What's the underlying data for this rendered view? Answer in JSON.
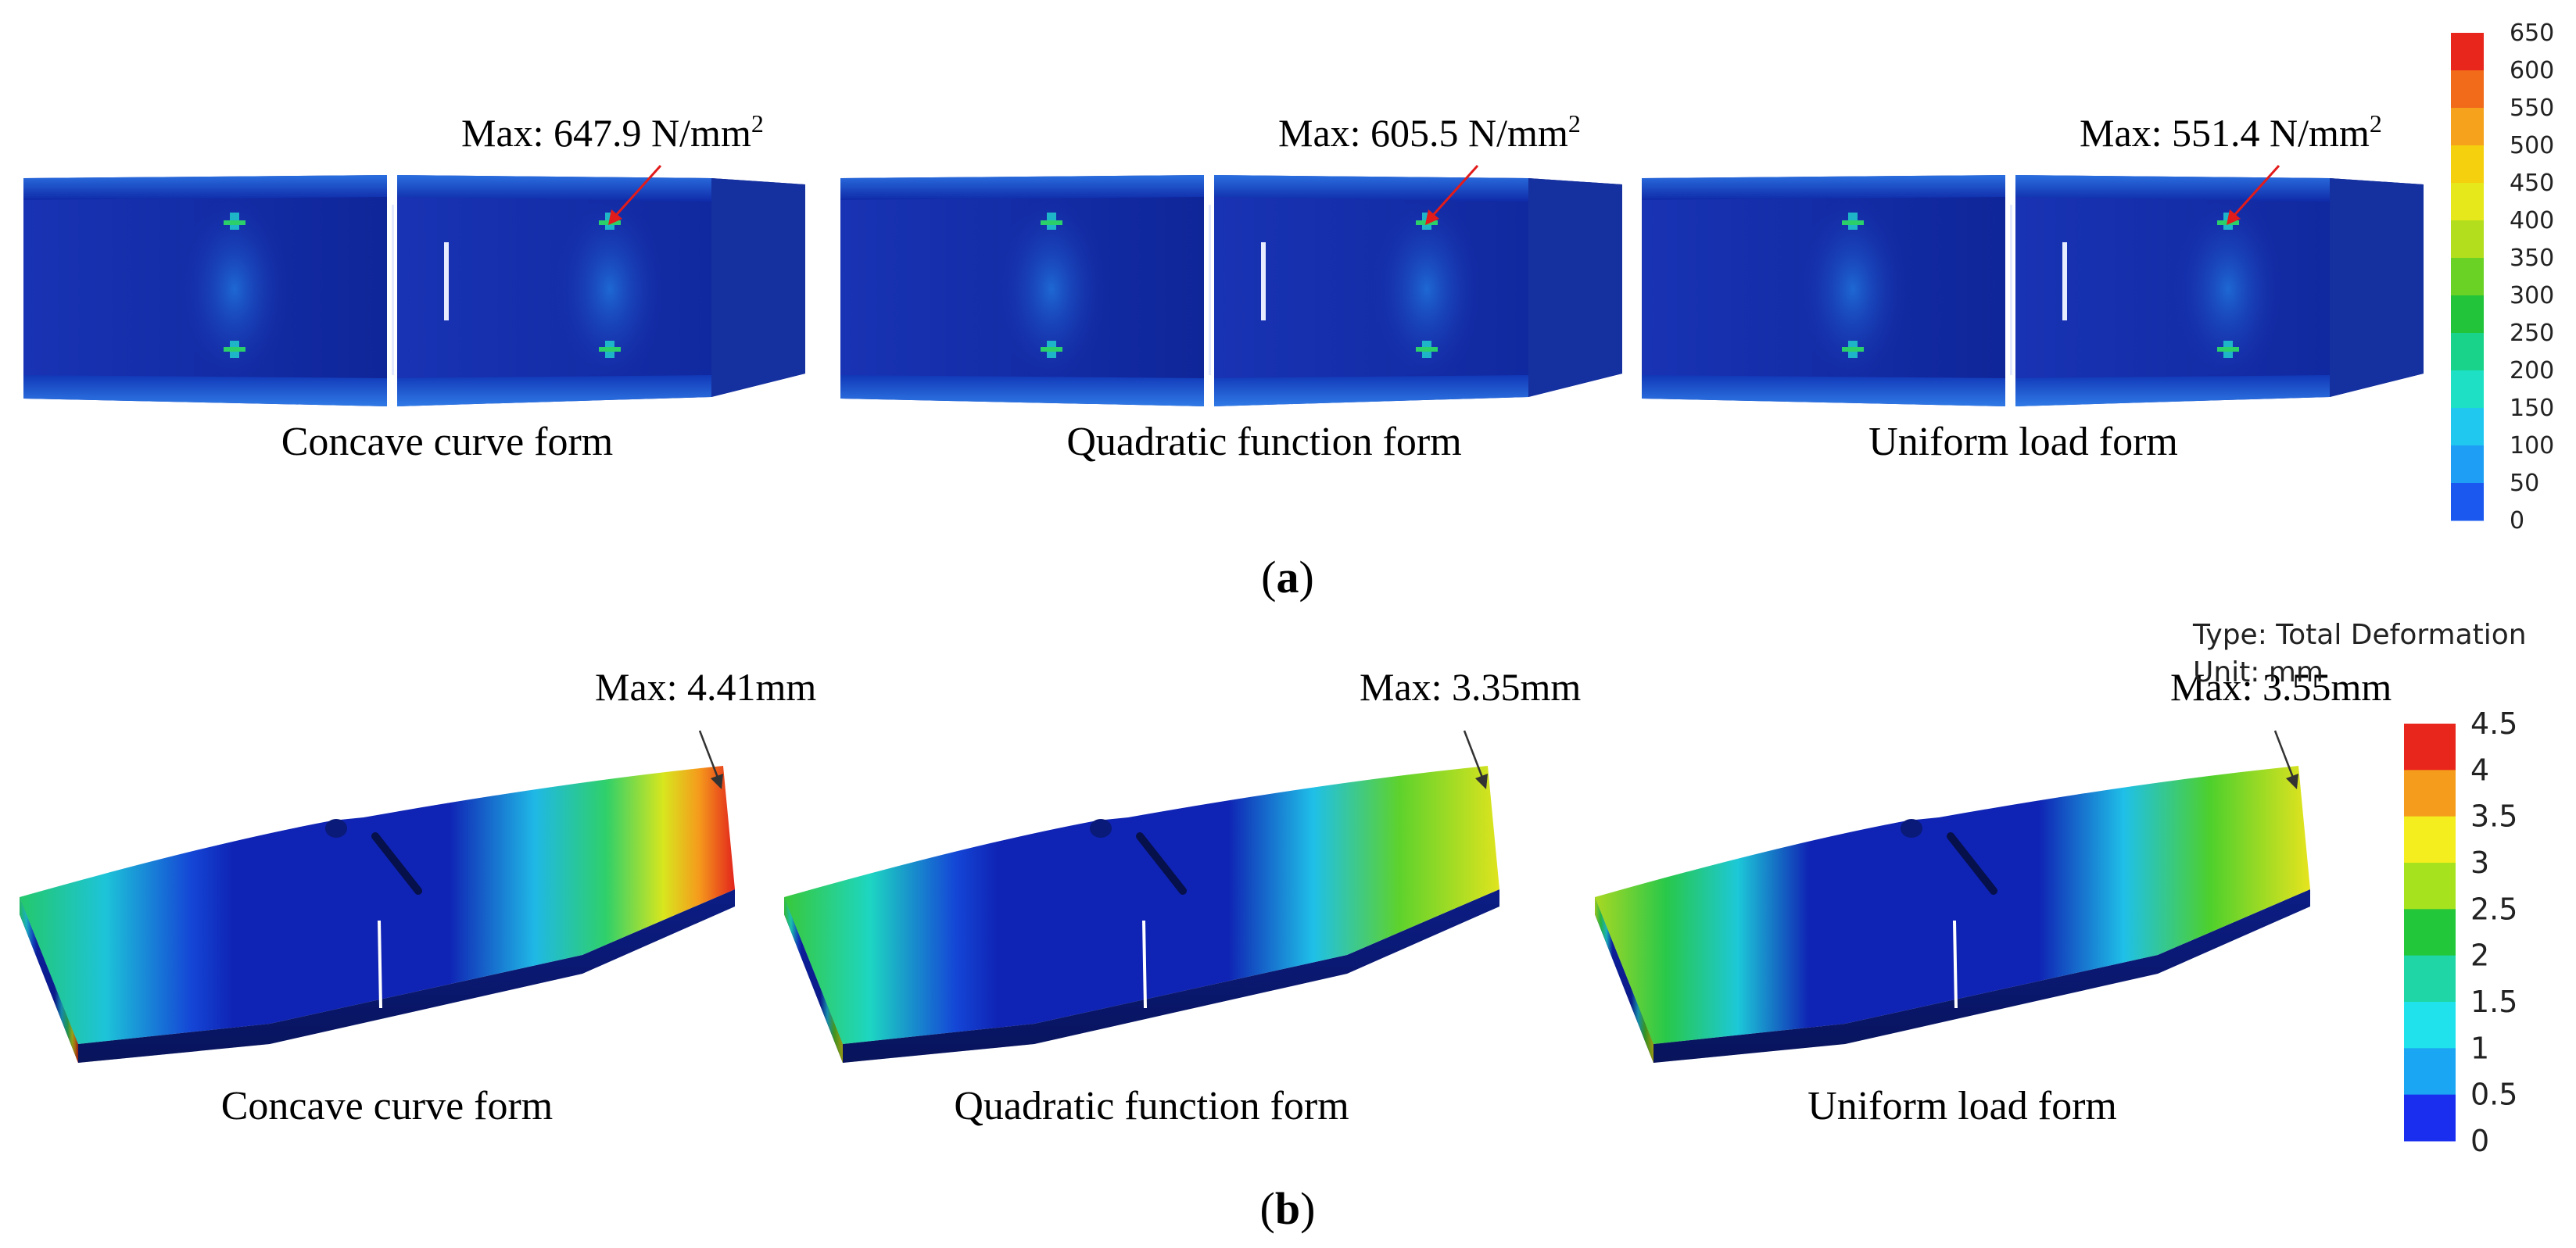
{
  "panels": {
    "a": {
      "label_open": "(",
      "label_letter": "a",
      "label_close": ")",
      "unit_prefix": "N/mm",
      "unit_exponent": "2",
      "models": [
        {
          "caption": "Concave curve form",
          "max_prefix": "Max: ",
          "max_value": "647.9"
        },
        {
          "caption": "Quadratic function form",
          "max_prefix": "Max: ",
          "max_value": "605.5"
        },
        {
          "caption": "Uniform load form",
          "max_prefix": "Max: ",
          "max_value": "551.4"
        }
      ],
      "legend": {
        "ticks": [
          "650",
          "600",
          "550",
          "500",
          "450",
          "400",
          "350",
          "300",
          "250",
          "200",
          "150",
          "100",
          "50",
          "0"
        ],
        "colors": [
          "#e8261c",
          "#f26b1b",
          "#f7a21c",
          "#f5d00e",
          "#e6e81b",
          "#b2de1e",
          "#6ad225",
          "#22c43a",
          "#1ad38a",
          "#1de0c4",
          "#20c8f0",
          "#1e9ef5",
          "#1a58f0"
        ]
      }
    },
    "b": {
      "label_open": "(",
      "label_letter": "b",
      "label_close": ")",
      "legend_title_line1": "Type: Total Deformation",
      "legend_title_line2": "Unit: mm",
      "models": [
        {
          "caption": "Concave curve form",
          "max_label": "Max: 4.41mm"
        },
        {
          "caption": "Quadratic function form",
          "max_label": "Max: 3.35mm"
        },
        {
          "caption": "Uniform load form",
          "max_label": "Max: 3.55mm"
        }
      ],
      "legend": {
        "ticks": [
          "4.5",
          "4",
          "3.5",
          "3",
          "2.5",
          "2",
          "1.5",
          "1",
          "0.5",
          "0"
        ],
        "colors": [
          "#e8261c",
          "#f59c1c",
          "#f4ee1e",
          "#a6e21e",
          "#22c83a",
          "#1ed6a6",
          "#1fe2ec",
          "#1aa6f2",
          "#1a2ef0"
        ]
      }
    }
  }
}
